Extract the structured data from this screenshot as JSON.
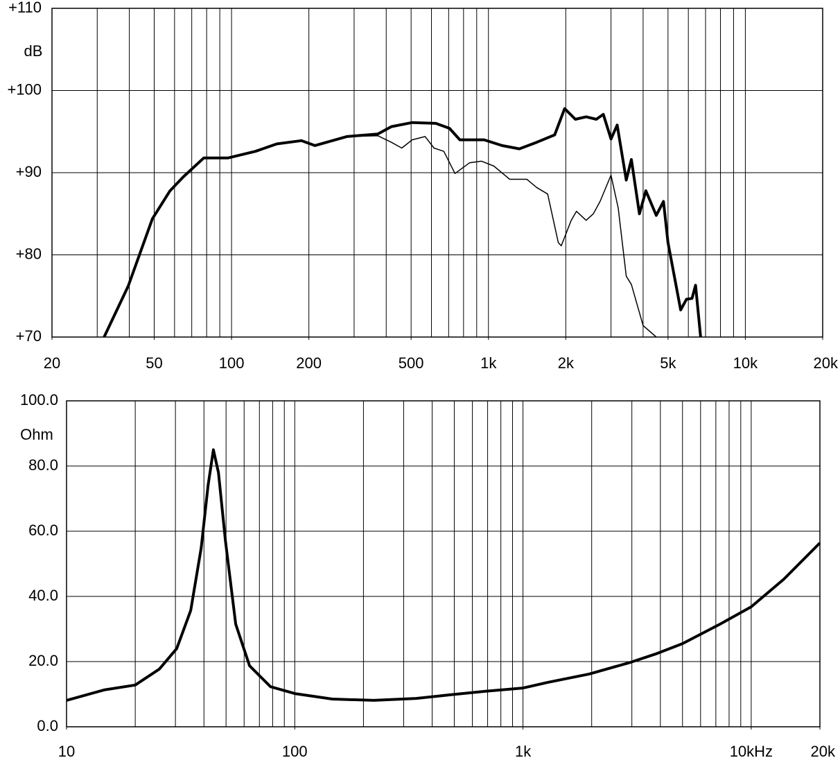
{
  "chart_data": [
    {
      "type": "line",
      "xscale": "log",
      "ylabel": "dB",
      "xlim": [
        20,
        20000
      ],
      "ylim": [
        70,
        110
      ],
      "xticks": [
        20,
        50,
        100,
        200,
        500,
        {
          "value": 1000,
          "label": "1k"
        },
        {
          "value": 2000,
          "label": "2k"
        },
        {
          "value": 5000,
          "label": "5k"
        },
        {
          "value": 10000,
          "label": "10k"
        },
        {
          "value": 20000,
          "label": "20k"
        }
      ],
      "xgrid": [
        30,
        40,
        50,
        60,
        70,
        80,
        90,
        100,
        200,
        300,
        400,
        500,
        600,
        700,
        800,
        900,
        1000,
        2000,
        3000,
        4000,
        5000,
        6000,
        7000,
        8000,
        9000,
        10000
      ],
      "yticks": [
        {
          "value": 110,
          "label": "+110"
        },
        {
          "value": 100,
          "label": "+100"
        },
        {
          "value": 90,
          "label": "+90"
        },
        {
          "value": 80,
          "label": "+80"
        },
        {
          "value": 70,
          "label": "+70"
        }
      ],
      "grid": true,
      "series": [
        {
          "color": "#000000",
          "width": "thick",
          "x": [
            31.9,
            39.6,
            49.2,
            57.6,
            65,
            78,
            97.1,
            124,
            150,
            187,
            211,
            281,
            371,
            419,
            505,
            624,
            705,
            774,
            962,
            1130,
            1320,
            1540,
            1810,
            1980,
            2180,
            2400,
            2630,
            2800,
            3000,
            3170,
            3440,
            3600,
            3870,
            4100,
            4500,
            4800,
            5000,
            5600,
            5900,
            6200,
            6400,
            6700
          ],
          "values": [
            70,
            76.2,
            84.4,
            87.8,
            89.5,
            91.8,
            91.8,
            92.6,
            93.5,
            93.9,
            93.3,
            94.4,
            94.7,
            95.6,
            96.1,
            96.0,
            95.4,
            94.0,
            94.0,
            93.3,
            92.9,
            93.7,
            94.6,
            97.8,
            96.5,
            96.8,
            96.5,
            97.1,
            94.1,
            95.8,
            89.1,
            91.6,
            85.0,
            87.8,
            84.8,
            86.5,
            81.5,
            73.3,
            74.6,
            74.7,
            76.3,
            70
          ]
        },
        {
          "color": "#000000",
          "width": "thin",
          "x": [
            281,
            371,
            419,
            460,
            505,
            567,
            614,
            670,
            741,
            844,
            940,
            1050,
            1210,
            1410,
            1540,
            1700,
            1870,
            1920,
            2100,
            2200,
            2400,
            2560,
            2720,
            3000,
            3200,
            3440,
            3600,
            4000,
            4500
          ],
          "values": [
            94.4,
            94.5,
            93.7,
            93.0,
            94.0,
            94.4,
            93.0,
            92.6,
            89.9,
            91.2,
            91.4,
            90.8,
            89.2,
            89.2,
            88.2,
            87.4,
            81.5,
            81.1,
            84.2,
            85.3,
            84.2,
            85.0,
            86.5,
            89.7,
            85.7,
            77.4,
            76.4,
            71.4,
            70
          ]
        }
      ]
    },
    {
      "type": "line",
      "xscale": "log",
      "ylabel": "Ohm",
      "xlim": [
        10,
        20000
      ],
      "ylim": [
        0,
        100
      ],
      "xticks": [
        10,
        100,
        {
          "value": 1000,
          "label": "1k"
        },
        {
          "value": 10000,
          "label": "10kHz"
        },
        {
          "value": 20000,
          "label": "20k"
        }
      ],
      "xgrid": [
        20,
        30,
        40,
        50,
        60,
        70,
        80,
        90,
        100,
        200,
        300,
        400,
        500,
        600,
        700,
        800,
        900,
        1000,
        2000,
        3000,
        4000,
        5000,
        6000,
        7000,
        8000,
        9000,
        10000,
        20000
      ],
      "yticks": [
        {
          "value": 100,
          "label": "100.0"
        },
        {
          "value": 80,
          "label": "80.0"
        },
        {
          "value": 60,
          "label": "60.0"
        },
        {
          "value": 40,
          "label": "40.0"
        },
        {
          "value": 20,
          "label": "20.0"
        },
        {
          "value": 0,
          "label": "0.0"
        }
      ],
      "grid": true,
      "series": [
        {
          "color": "#000000",
          "width": "thick",
          "x": [
            10,
            14.6,
            20,
            25.5,
            30.4,
            35,
            38.9,
            41.7,
            44,
            46.3,
            49.7,
            55.1,
            63.4,
            78.3,
            100,
            146,
            222,
            340,
            480,
            686,
            1000,
            1280,
            1950,
            2970,
            3800,
            5000,
            7300,
            10000,
            13900,
            20000
          ],
          "values": [
            8.1,
            11.3,
            12.8,
            17.7,
            24,
            35.7,
            54.9,
            74,
            85,
            78,
            57,
            31.5,
            18.7,
            12.3,
            10.2,
            8.5,
            8.1,
            8.7,
            9.8,
            10.9,
            11.9,
            13.6,
            16.2,
            19.8,
            22.3,
            25.5,
            31.5,
            36.8,
            45.3,
            56.4
          ]
        }
      ]
    }
  ]
}
